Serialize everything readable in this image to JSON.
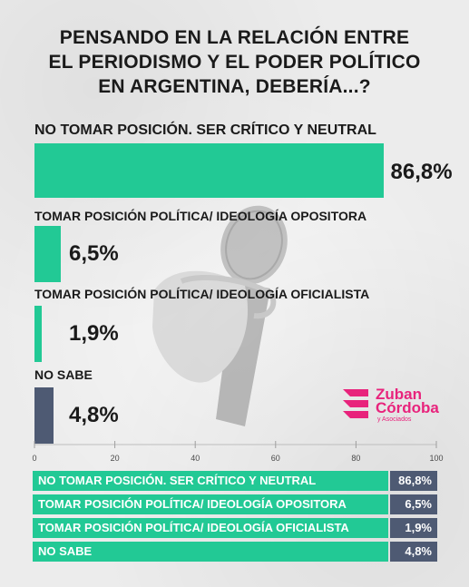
{
  "title_lines": [
    "PENSANDO EN LA RELACIÓN ENTRE",
    "EL PERIODISMO Y EL PODER POLÍTICO",
    "EN ARGENTINA, DEBERÍA...?"
  ],
  "colors": {
    "green": "#22c995",
    "slate": "#4e5a73",
    "brand_pink": "#e8237c"
  },
  "logo": {
    "name_line1": "Zuban",
    "name_line2": "Córdoba",
    "name_line3": "y Asociados"
  },
  "chart_data": {
    "type": "bar",
    "orientation": "horizontal",
    "categories": [
      "NO TOMAR POSICIÓN. SER CRÍTICO Y NEUTRAL",
      "TOMAR POSICIÓN POLÍTICA/ IDEOLOGÍA OPOSITORA",
      "TOMAR POSICIÓN POLÍTICA/ IDEOLOGÍA OFICIALISTA",
      "NO SABE"
    ],
    "values": [
      86.8,
      6.5,
      1.9,
      4.8
    ],
    "value_labels": [
      "86,8%",
      "6,5%",
      "1,9%",
      "4,8%"
    ],
    "bar_colors": [
      "#22c995",
      "#22c995",
      "#22c995",
      "#4e5a73"
    ],
    "xlim": [
      0,
      100
    ],
    "x_ticks": [
      "0",
      "20",
      "40",
      "60",
      "80",
      "100"
    ],
    "grid": false,
    "title": "PENSANDO EN LA RELACIÓN ENTRE EL PERIODISMO Y EL PODER POLÍTICO EN ARGENTINA, DEBERÍA...?"
  },
  "table": {
    "rows": [
      {
        "label": "NO TOMAR POSICIÓN. SER CRÍTICO Y NEUTRAL",
        "value": "86,8%"
      },
      {
        "label": "TOMAR POSICIÓN POLÍTICA/ IDEOLOGÍA OPOSITORA",
        "value": "6,5%"
      },
      {
        "label": "TOMAR POSICIÓN POLÍTICA/ IDEOLOGÍA OFICIALISTA",
        "value": "1,9%"
      },
      {
        "label": "NO SABE",
        "value": "4,8%"
      }
    ]
  }
}
